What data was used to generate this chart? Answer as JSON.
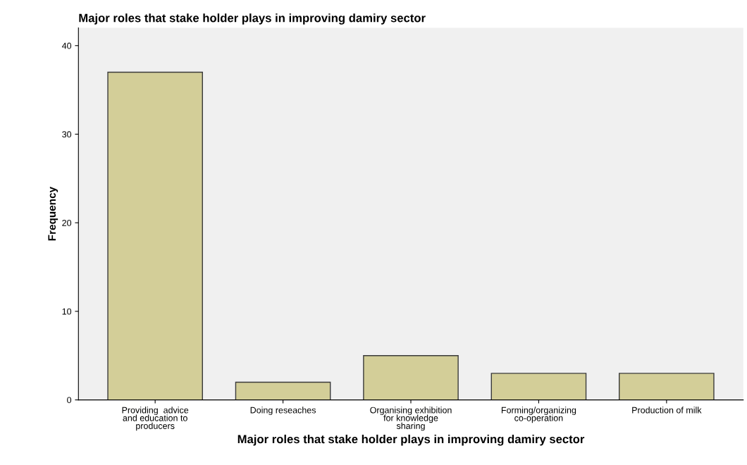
{
  "chart_data": {
    "type": "bar",
    "title": "Major roles that stake holder plays in improving damiry sector",
    "xlabel": "Major roles that stake holder plays in improving damiry sector",
    "ylabel": "Frequency",
    "categories": [
      "Providing  advice\nand education to\nproducers",
      "Doing reseaches",
      "Organising exhibition\nfor knowledge\nsharing",
      "Forming/organizing\nco-operation",
      "Production of milk"
    ],
    "values": [
      37,
      2,
      5,
      3,
      3
    ],
    "color": "#d3ce98",
    "ylim": [
      0,
      42
    ],
    "yticks": [
      0,
      10,
      20,
      30,
      40
    ],
    "grid": false,
    "legend": false
  }
}
